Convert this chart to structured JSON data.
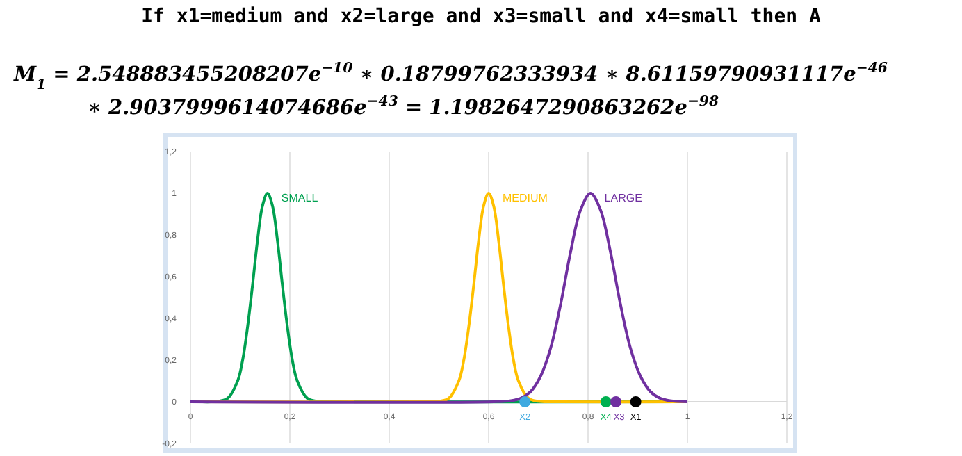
{
  "chart_data": {
    "type": "line",
    "title": "If x1=medium and x2=large and x3=small and x4=small then A",
    "annotations": [
      "M$_{1}$ = 2.548883455208207e$^{−10}$ ∗ 0.18799762333934 ∗ 8.61159790931117e$^{−46}$",
      "∗ 2.9037999614074686e$^{−43}$ = 1.1982647290863262e$^{−98}$"
    ],
    "xlim": [
      0,
      1.2
    ],
    "ylim": [
      -0.2,
      1.2
    ],
    "xticks": [
      0,
      {
        "value": 0.2,
        "label": "0,2"
      },
      {
        "value": 0.4,
        "label": "0,4"
      },
      {
        "value": 0.6,
        "label": "0,6"
      },
      {
        "value": 0.8,
        "label": "0,8"
      },
      1,
      {
        "value": 1.2,
        "label": "1,2"
      }
    ],
    "yticks": [
      {
        "value": -0.2,
        "label": "-0,2"
      },
      0,
      {
        "value": 0.2,
        "label": "0,2"
      },
      {
        "value": 0.4,
        "label": "0,4"
      },
      {
        "value": 0.6,
        "label": "0,6"
      },
      {
        "value": 0.8,
        "label": "0,8"
      },
      1,
      {
        "value": 1.2,
        "label": "1,2"
      }
    ],
    "grid": "x",
    "line_style": "solid",
    "series": [
      {
        "name": "SMALL",
        "color": "#00a050",
        "x": [
          0,
          0.015,
          0.055,
          0.075,
          0.095,
          0.105,
          0.115,
          0.125,
          0.135,
          0.145,
          0.155,
          0.165,
          0.175,
          0.185,
          0.195,
          0.205,
          0.215,
          0.235,
          0.255,
          0.295,
          1
        ],
        "values": [
          0,
          0,
          0.002,
          0.017,
          0.1,
          0.2,
          0.36,
          0.56,
          0.775,
          0.94,
          1,
          0.94,
          0.775,
          0.56,
          0.36,
          0.2,
          0.1,
          0.017,
          0.002,
          0,
          0
        ]
      },
      {
        "name": "MEDIUM",
        "color": "#ffc000",
        "x": [
          0,
          0.46,
          0.5,
          0.52,
          0.54,
          0.55,
          0.56,
          0.57,
          0.58,
          0.59,
          0.6,
          0.61,
          0.62,
          0.63,
          0.64,
          0.65,
          0.66,
          0.68,
          0.7,
          0.74,
          1
        ],
        "values": [
          0,
          0,
          0.002,
          0.017,
          0.1,
          0.2,
          0.36,
          0.56,
          0.775,
          0.94,
          1,
          0.94,
          0.775,
          0.56,
          0.36,
          0.2,
          0.1,
          0.017,
          0.002,
          0,
          0
        ]
      },
      {
        "name": "LARGE",
        "color": "#7030a0",
        "x": [
          0,
          0.61,
          0.645,
          0.665,
          0.685,
          0.705,
          0.725,
          0.745,
          0.765,
          0.785,
          0.805,
          0.825,
          0.845,
          0.865,
          0.885,
          0.905,
          0.925,
          0.945,
          0.965,
          1
        ],
        "values": [
          0,
          0,
          0.005,
          0.017,
          0.05,
          0.125,
          0.26,
          0.47,
          0.72,
          0.92,
          1,
          0.92,
          0.72,
          0.47,
          0.26,
          0.125,
          0.05,
          0.017,
          0.005,
          0
        ]
      },
      {
        "type": "scatter",
        "marker": "circle",
        "name": "X2",
        "color": "#3fa9e0",
        "x": [
          0.673
        ],
        "values": [
          0
        ]
      },
      {
        "type": "scatter",
        "marker": "circle",
        "name": "X4",
        "color": "#00b050",
        "x": [
          0.836
        ],
        "values": [
          0
        ]
      },
      {
        "type": "scatter",
        "marker": "circle",
        "name": "X3",
        "color": "#7030a0",
        "x": [
          0.856
        ],
        "values": [
          0
        ]
      },
      {
        "type": "scatter",
        "marker": "circle",
        "name": "X1",
        "color": "#000000",
        "x": [
          0.896
        ],
        "values": [
          0
        ]
      }
    ]
  }
}
